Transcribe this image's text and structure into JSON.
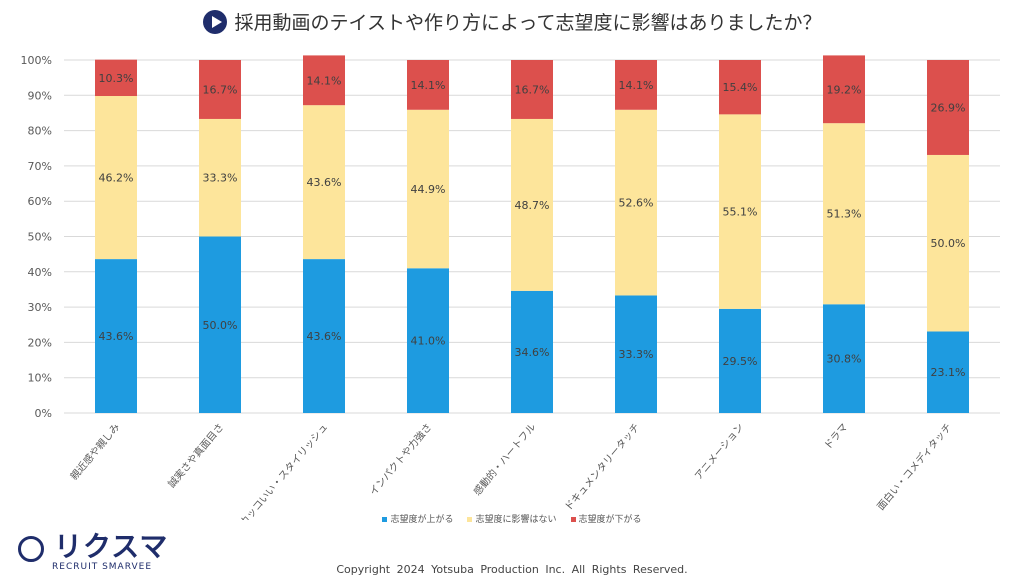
{
  "title": "採用動画のテイストや作り方によって志望度に影響はありましたか？",
  "chart_data": {
    "type": "bar",
    "stacked": true,
    "categories": [
      "親近感や親しみ",
      "誠実さや真面目さ",
      "カッコいい・スタイリッシュ",
      "インパクトや力強さ",
      "感動的・ハートフル",
      "ドキュメンタリータッチ",
      "アニメーション",
      "ドラマ",
      "面白い・コメディタッチ"
    ],
    "series": [
      {
        "name": "志望度が上がる",
        "color": "#1e9be0",
        "values": [
          43.6,
          50.0,
          43.6,
          41.0,
          34.6,
          33.3,
          29.5,
          30.8,
          23.1
        ]
      },
      {
        "name": "志望度に影響はない",
        "color": "#fde59b",
        "values": [
          46.2,
          33.3,
          43.6,
          44.9,
          48.7,
          52.6,
          55.1,
          51.3,
          50.0
        ]
      },
      {
        "name": "志望度が下がる",
        "color": "#dc504d",
        "values": [
          10.3,
          16.7,
          14.1,
          14.1,
          16.7,
          14.1,
          15.4,
          19.2,
          26.9
        ]
      }
    ],
    "yticks": [
      "0%",
      "10%",
      "20%",
      "30%",
      "40%",
      "50%",
      "60%",
      "70%",
      "80%",
      "90%",
      "100%"
    ],
    "ylim": [
      0,
      100
    ],
    "grid": true,
    "legend": "bottom"
  },
  "logo": {
    "jp": "リクスマ",
    "en": "RECRUIT SMARVEE"
  },
  "copyright": "Copyright 2024  Yotsuba  Production  Inc.   All  Rights  Reserved."
}
